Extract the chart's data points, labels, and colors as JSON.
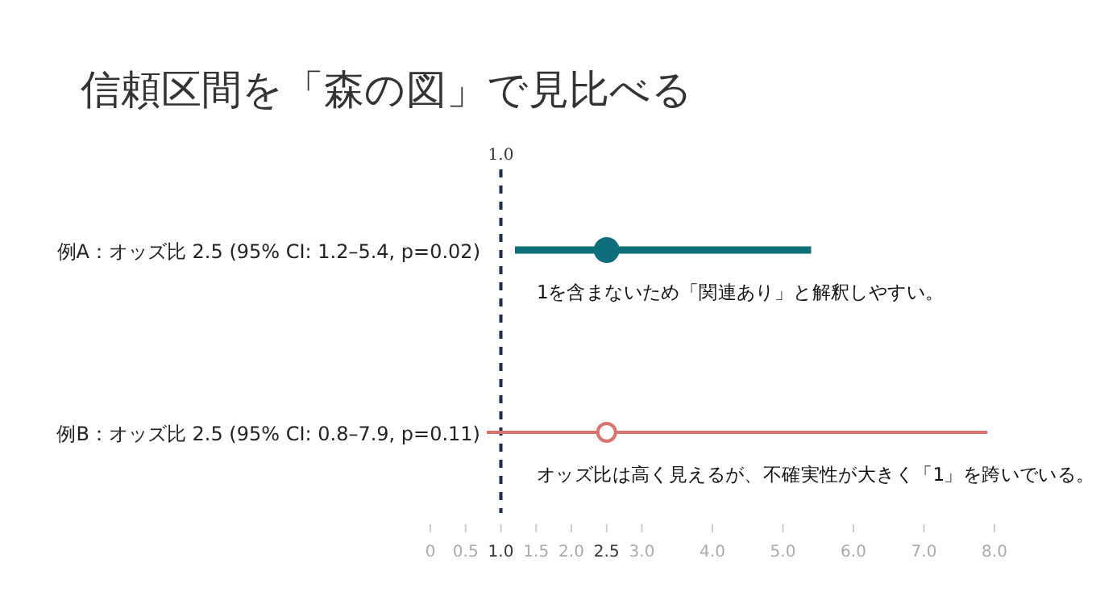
{
  "chart_data": {
    "type": "scatter",
    "orientation": "horizontal",
    "title": "信頼区間を「森の図」で見比べる",
    "categories": [
      "例A：オッズ比 2.5 (95% CI: 1.2–5.4, p=0.02)",
      "例B：オッズ比 2.5 (95% CI: 0.8–7.9, p=0.11)"
    ],
    "values": [
      2.5,
      2.5
    ],
    "errors": [
      [
        1.2,
        5.4
      ],
      [
        0.8,
        7.9
      ]
    ],
    "colors": [
      "#0e6f7a",
      "#d9726f"
    ],
    "marker": "circle",
    "xlim": [
      0,
      8
    ],
    "xticks": [
      {
        "value": 0,
        "label": "0"
      },
      {
        "value": 0.5,
        "label": "0.5"
      },
      {
        "value": 1,
        "label": "1.0"
      },
      {
        "value": 1.5,
        "label": "1.5"
      },
      {
        "value": 2,
        "label": "2.0"
      },
      {
        "value": 2.5,
        "label": "2.5"
      },
      {
        "value": 3,
        "label": "3.0"
      },
      {
        "value": 4,
        "label": "4.0"
      },
      {
        "value": 5,
        "label": "5.0"
      },
      {
        "value": 6,
        "label": "6.0"
      },
      {
        "value": 7,
        "label": "7.0"
      },
      {
        "value": 8,
        "label": "8.0"
      }
    ],
    "ref_lines": [
      {
        "axis": "x",
        "value": 1,
        "label": "1.0",
        "color": "#1f2a44",
        "line_style": "dashed"
      }
    ],
    "annotations": [
      "1を含まないため「関連あり」と解釈しやすい。",
      "オッズ比は高く見えるが、不確実性が大きく「1」を跨いでいる。"
    ],
    "grid": false
  }
}
